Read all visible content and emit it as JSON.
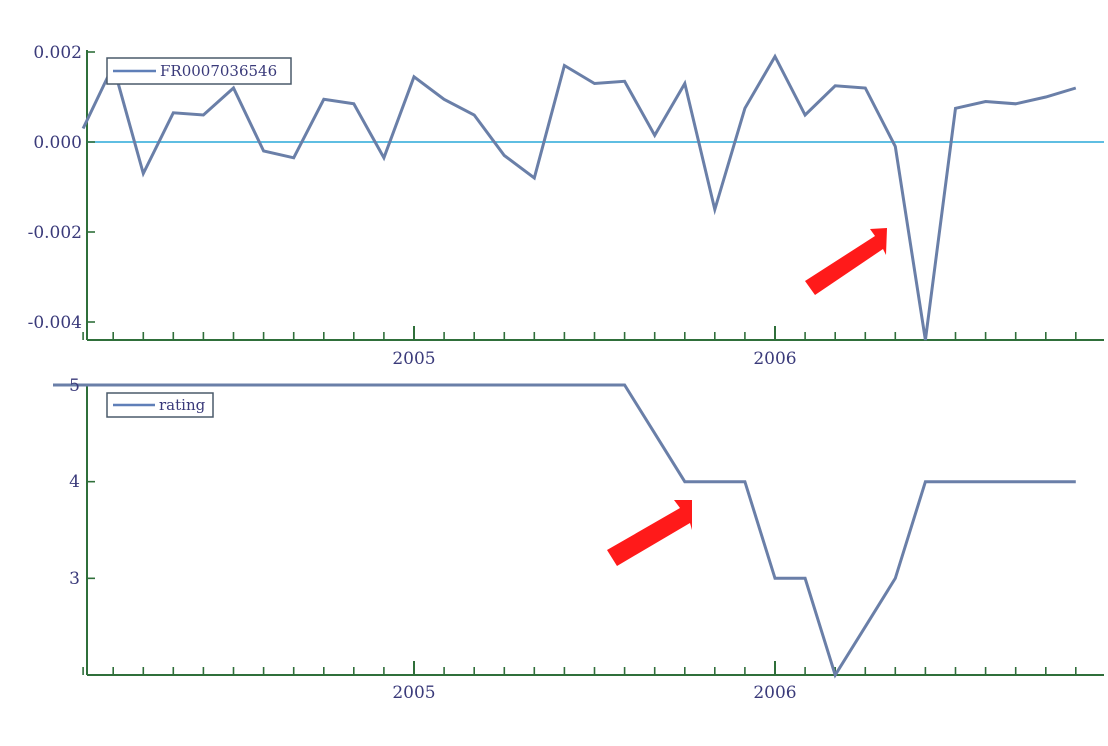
{
  "colors": {
    "series": "#6a7fa8",
    "zero_line": "#2aa8d8",
    "axis": "#2f6f3a",
    "arrow": "#ff1a1a",
    "text": "#3a3a7a"
  },
  "chart_data": [
    {
      "type": "line",
      "x_dates": [
        "2004-02",
        "2004-03",
        "2004-04",
        "2004-05",
        "2004-06",
        "2004-07",
        "2004-08",
        "2004-09",
        "2004-10",
        "2004-11",
        "2004-12",
        "2005-01",
        "2005-02",
        "2005-03",
        "2005-04",
        "2005-05",
        "2005-06",
        "2005-07",
        "2005-08",
        "2005-09",
        "2005-10",
        "2005-11",
        "2005-12",
        "2006-01",
        "2006-02",
        "2006-03",
        "2006-04",
        "2006-05",
        "2006-06",
        "2006-07",
        "2006-08",
        "2006-09",
        "2006-10",
        "2006-11"
      ],
      "series": [
        {
          "name": "FR0007036546",
          "values": [
            0.0003,
            0.0017,
            -0.0007,
            0.00065,
            0.0006,
            0.0012,
            -0.0002,
            -0.00035,
            0.00095,
            0.00085,
            -0.00035,
            0.00145,
            0.00095,
            0.0006,
            -0.0003,
            -0.0008,
            0.0017,
            0.0013,
            0.00135,
            0.00015,
            0.0013,
            -0.0015,
            0.00075,
            0.0019,
            0.0006,
            0.00125,
            0.0012,
            -0.0001,
            -0.0044,
            0.00075,
            0.0009,
            0.00085,
            0.001,
            0.0012
          ]
        }
      ],
      "xtick_labels": [
        "2005",
        "2006"
      ],
      "ytick_labels": [
        "0.002",
        "0.000",
        "-0.002",
        "-0.004"
      ],
      "yticks": [
        0.002,
        0.0,
        -0.002,
        -0.004
      ],
      "ylim": [
        -0.0044,
        0.002
      ],
      "reference_line": 0.0,
      "legend": "top-left",
      "annotation": "red arrow pointing at the 2006 dip"
    },
    {
      "type": "line",
      "x_dates": [
        "2004-01",
        "2005-08",
        "2005-09",
        "2005-10",
        "2005-11",
        "2005-12",
        "2006-01",
        "2006-02",
        "2006-03",
        "2006-04",
        "2006-05",
        "2006-06",
        "2006-07",
        "2006-08",
        "2006-09",
        "2006-10",
        "2006-11"
      ],
      "series": [
        {
          "name": "rating",
          "values": [
            5,
            5,
            4.5,
            4,
            4,
            4,
            3,
            3,
            2,
            2.5,
            3,
            4,
            4,
            4,
            4,
            4,
            4
          ]
        }
      ],
      "xtick_labels": [
        "2005",
        "2006"
      ],
      "ytick_labels": [
        "5",
        "4",
        "3"
      ],
      "yticks": [
        5,
        4,
        3
      ],
      "ylim": [
        2,
        5
      ],
      "legend": "top-left",
      "annotation": "red arrow pointing at the rating step down to 4"
    }
  ]
}
